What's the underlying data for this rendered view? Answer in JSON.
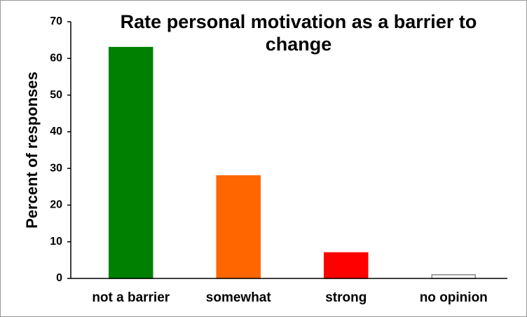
{
  "chart_data": {
    "type": "bar",
    "title": "Rate personal motivation as a barrier to change",
    "y_label": "Percent of responses",
    "categories": [
      "not a barrier",
      "somewhat",
      "strong",
      "no opinion"
    ],
    "values": [
      63,
      28,
      7,
      1
    ],
    "colors": [
      "#008000",
      "#ff6600",
      "#ff0000",
      "#ffffff"
    ],
    "edgecolors": [
      "#008000",
      "#ff6600",
      "#ff0000",
      "#888888"
    ],
    "ylim": [
      0,
      70
    ],
    "yticks": [
      0,
      10,
      20,
      30,
      40,
      50,
      60,
      70
    ],
    "grid": false
  }
}
